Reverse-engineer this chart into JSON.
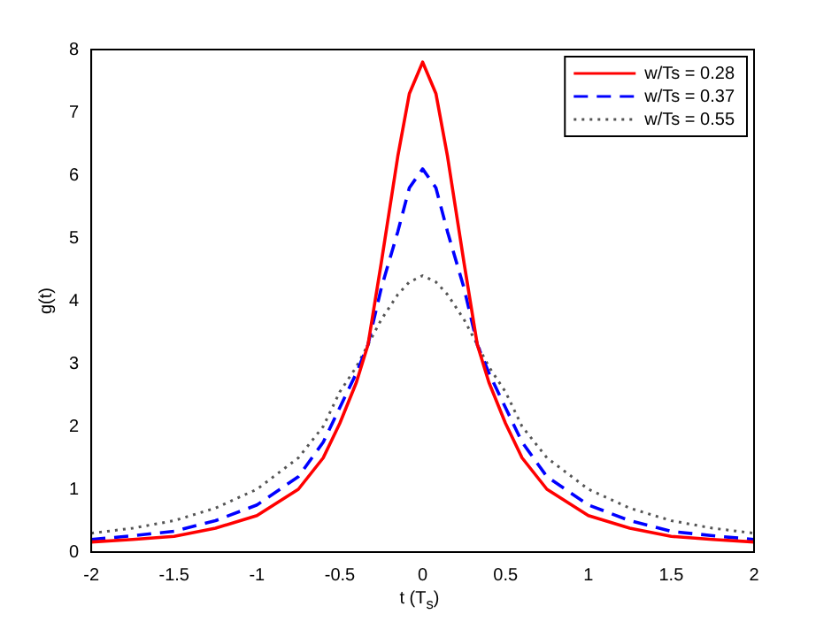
{
  "chart_data": {
    "type": "line",
    "xlabel": "t (T$_{s}$)",
    "ylabel": "g(t)",
    "x": [
      -2,
      -1.75,
      -1.5,
      -1.25,
      -1,
      -0.75,
      -0.6,
      -0.5,
      -0.4,
      -0.33,
      -0.25,
      -0.15,
      -0.08,
      0,
      0.08,
      0.15,
      0.25,
      0.33,
      0.4,
      0.5,
      0.6,
      0.75,
      1,
      1.25,
      1.5,
      1.75,
      2
    ],
    "series": [
      {
        "name": "w/Ts = 0.28",
        "color": "#ff0000",
        "line_style": "solid",
        "values": [
          0.16,
          0.2,
          0.25,
          0.38,
          0.58,
          1.0,
          1.5,
          2.05,
          2.7,
          3.3,
          4.6,
          6.3,
          7.3,
          7.8,
          7.3,
          6.3,
          4.6,
          3.3,
          2.7,
          2.05,
          1.5,
          1.0,
          0.58,
          0.38,
          0.25,
          0.2,
          0.16
        ]
      },
      {
        "name": "w/Ts = 0.37",
        "color": "#0000ff",
        "line_style": "dashed",
        "values": [
          0.2,
          0.26,
          0.33,
          0.5,
          0.75,
          1.2,
          1.75,
          2.3,
          2.85,
          3.3,
          4.2,
          5.1,
          5.8,
          6.1,
          5.8,
          5.1,
          4.2,
          3.3,
          2.85,
          2.3,
          1.75,
          1.2,
          0.75,
          0.5,
          0.33,
          0.26,
          0.2
        ]
      },
      {
        "name": "w/Ts = 0.55",
        "color": "#555555",
        "line_style": "dotted",
        "values": [
          0.3,
          0.38,
          0.5,
          0.7,
          1.0,
          1.5,
          2.0,
          2.55,
          2.95,
          3.3,
          3.7,
          4.1,
          4.3,
          4.4,
          4.3,
          4.1,
          3.7,
          3.3,
          2.95,
          2.55,
          2.0,
          1.5,
          1.0,
          0.7,
          0.5,
          0.38,
          0.3
        ]
      }
    ],
    "xlim": [
      -2,
      2
    ],
    "xticks": [
      -2,
      -1.5,
      -1,
      -0.5,
      0,
      0.5,
      1,
      1.5,
      2
    ],
    "ylim": [
      0,
      8
    ],
    "yticks": [
      0,
      1,
      2,
      3,
      4,
      5,
      6,
      7,
      8
    ],
    "grid": false,
    "legend": "top right",
    "marker": "none"
  }
}
